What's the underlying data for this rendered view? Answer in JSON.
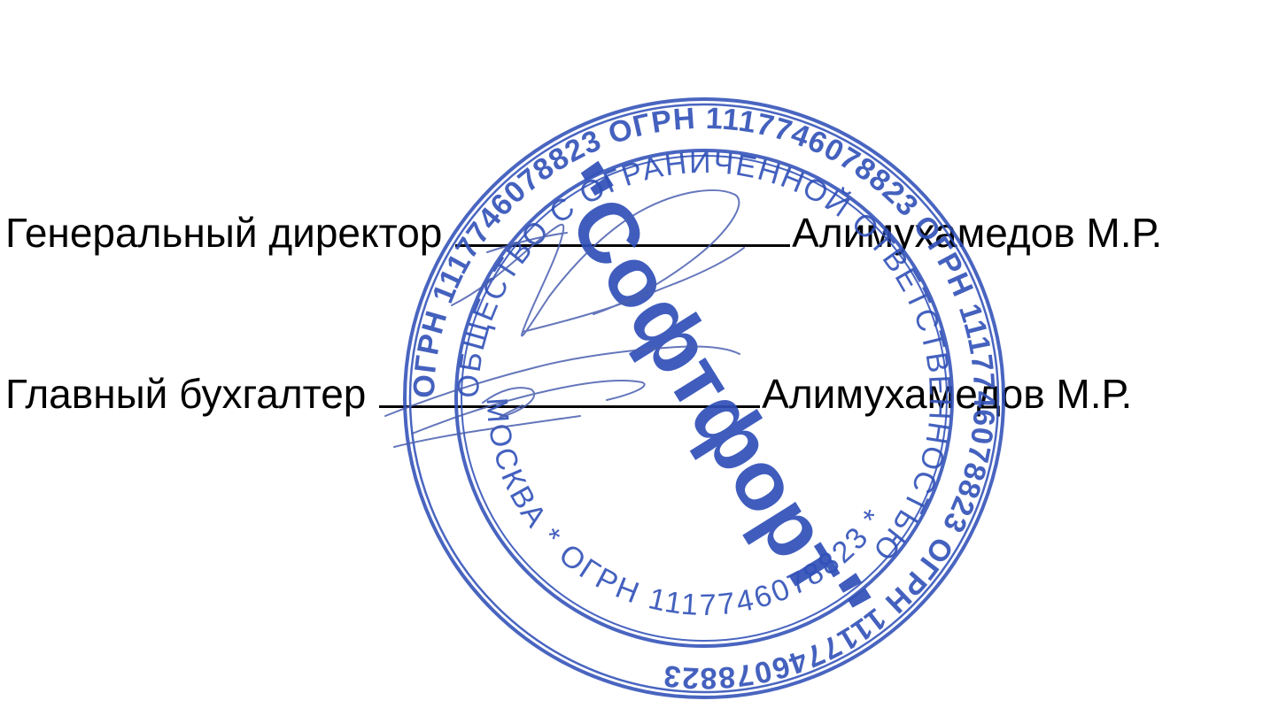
{
  "signatures": {
    "director": {
      "title": "Генеральный директор",
      "name": "Алимухамедов М.Р."
    },
    "accountant": {
      "title": "Главный бухгалтер",
      "name": "Алимухамедов М.Р."
    }
  },
  "seal": {
    "outer_ring_text": "ОГРН 1117746078823 ОГРН 1117746078823 ОГРН 1117746078823 ОГРН 1117746078823",
    "inner_ring_text": "ОБЩЕСТВО С ОГРАНИЧЕННОЙ ОТВЕТСТВЕННОСТЬЮ",
    "bottom_text": "МОСКВА * ОГРН 1117746078823 *",
    "center_text": "\"Софтфорт\"",
    "color": "#3050b8"
  },
  "colors": {
    "text": "#000000",
    "seal_ink": "#3050b8",
    "signature_ink": "#4a5fb0",
    "background": "#ffffff"
  }
}
